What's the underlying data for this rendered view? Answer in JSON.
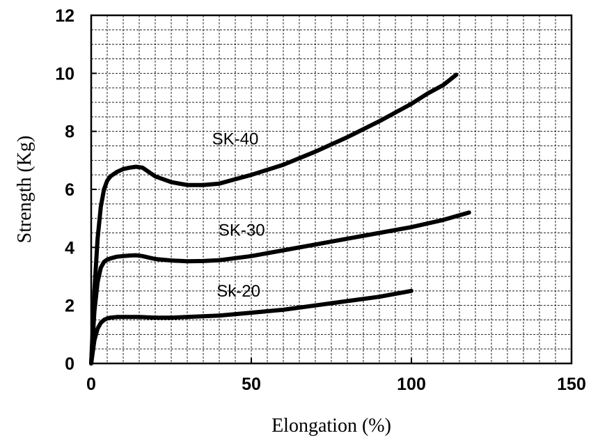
{
  "chart_data": {
    "type": "line",
    "title": "",
    "xlabel": "Elongation (%)",
    "ylabel": "Strength (Kg)",
    "xlim": [
      0,
      150
    ],
    "ylim": [
      0,
      12
    ],
    "x_ticks": [
      "0",
      "50",
      "100",
      "150"
    ],
    "y_ticks": [
      "0",
      "2",
      "4",
      "6",
      "8",
      "10",
      "12"
    ],
    "grid": true,
    "series": [
      {
        "name": "SK-40",
        "x": [
          0,
          1,
          2,
          3,
          4,
          5,
          6,
          8,
          10,
          12,
          14,
          16,
          18,
          20,
          25,
          30,
          35,
          40,
          45,
          50,
          60,
          70,
          80,
          90,
          100,
          105,
          110,
          114
        ],
        "y": [
          0,
          2.5,
          4.3,
          5.4,
          6.0,
          6.3,
          6.45,
          6.6,
          6.7,
          6.75,
          6.78,
          6.75,
          6.6,
          6.45,
          6.25,
          6.15,
          6.15,
          6.2,
          6.35,
          6.5,
          6.85,
          7.3,
          7.8,
          8.35,
          8.95,
          9.3,
          9.6,
          9.95
        ]
      },
      {
        "name": "SK-30",
        "x": [
          0,
          1,
          2,
          3,
          4,
          5,
          6,
          8,
          10,
          12,
          14,
          16,
          18,
          20,
          25,
          30,
          35,
          40,
          50,
          60,
          70,
          80,
          90,
          100,
          110,
          118
        ],
        "y": [
          0,
          1.8,
          2.8,
          3.3,
          3.5,
          3.58,
          3.62,
          3.68,
          3.7,
          3.72,
          3.73,
          3.7,
          3.65,
          3.6,
          3.55,
          3.52,
          3.53,
          3.56,
          3.7,
          3.9,
          4.1,
          4.3,
          4.5,
          4.7,
          4.95,
          5.2
        ]
      },
      {
        "name": "Sk-20",
        "x": [
          0,
          1,
          2,
          3,
          4,
          5,
          6,
          8,
          10,
          12,
          15,
          20,
          25,
          30,
          40,
          50,
          60,
          70,
          80,
          90,
          100
        ],
        "y": [
          0,
          0.8,
          1.2,
          1.4,
          1.5,
          1.55,
          1.58,
          1.6,
          1.6,
          1.6,
          1.6,
          1.58,
          1.58,
          1.6,
          1.65,
          1.75,
          1.85,
          2.0,
          2.15,
          2.3,
          2.5
        ]
      }
    ]
  }
}
